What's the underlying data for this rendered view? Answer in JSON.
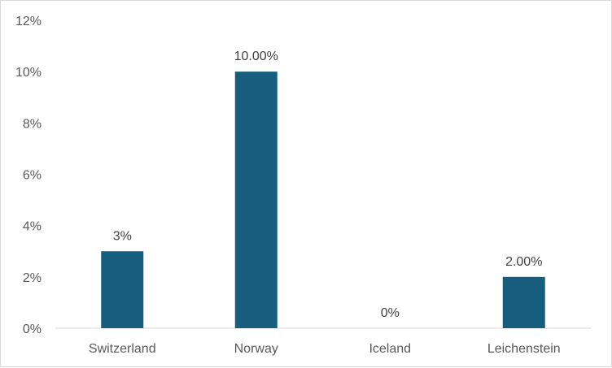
{
  "chart_data": {
    "type": "bar",
    "categories": [
      "Switzerland",
      "Norway",
      "Iceland",
      "Leichenstein"
    ],
    "values": [
      3,
      10,
      0,
      2
    ],
    "data_labels": [
      "3%",
      "10.00%",
      "0%",
      "2.00%"
    ],
    "y_tick_labels": [
      "0%",
      "2%",
      "4%",
      "6%",
      "8%",
      "10%",
      "12%"
    ],
    "ylim": [
      0,
      12
    ],
    "grid": false,
    "legend": "none",
    "title": "",
    "bar_color": "#175E7E"
  }
}
